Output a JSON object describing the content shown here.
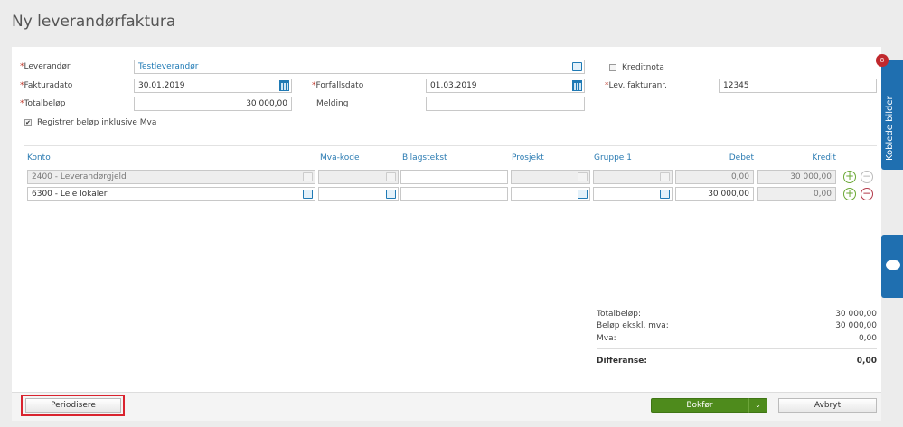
{
  "title": "Ny leverandørfaktura",
  "form": {
    "leverandor_label": "Leverandør",
    "leverandor_value": "Testleverandør",
    "fakturadato_label": "Fakturadato",
    "fakturadato_value": "30.01.2019",
    "forfallsdato_label": "Forfallsdato",
    "forfallsdato_value": "01.03.2019",
    "totalbelop_label": "Totalbeløp",
    "totalbelop_value": "30 000,00",
    "melding_label": "Melding",
    "melding_value": "",
    "kreditnota_label": "Kreditnota",
    "kreditnota_checked": false,
    "levfakturanr_label": "Lev. fakturanr.",
    "levfakturanr_value": "12345",
    "inkl_mva_label": "Registrer beløp inklusive Mva",
    "inkl_mva_checked": true,
    "required_mark": "*"
  },
  "table": {
    "headers": [
      "Konto",
      "Mva-kode",
      "Bilagstekst",
      "Prosjekt",
      "Gruppe 1",
      "Debet",
      "Kredit"
    ],
    "rows": [
      {
        "konto": "2400 - Leverandørgjeld",
        "mva": "",
        "bilag": "",
        "prosjekt": "",
        "gruppe": "",
        "debet": "0,00",
        "kredit": "30 000,00"
      },
      {
        "konto": "6300 - Leie lokaler",
        "mva": "",
        "bilag": "",
        "prosjekt": "",
        "gruppe": "",
        "debet": "30 000,00",
        "kredit": "0,00"
      }
    ]
  },
  "summary": {
    "totalbelop_label": "Totalbeløp:",
    "totalbelop_value": "30 000,00",
    "eksmva_label": "Beløp ekskl. mva:",
    "eksmva_value": "30 000,00",
    "mva_label": "Mva:",
    "mva_value": "0,00",
    "differanse_label": "Differanse:",
    "differanse_value": "0,00"
  },
  "footer": {
    "periodisere": "Periodisere",
    "bokfor": "Bokfør",
    "avbryt": "Avbryt"
  },
  "side": {
    "koblede_bilder": "Koblede bilder",
    "badge": "8"
  },
  "colors": {
    "accent": "#1f7ab5",
    "primary_button": "#4e8b1c",
    "badge": "#c0282d",
    "highlight": "#d9232e"
  }
}
